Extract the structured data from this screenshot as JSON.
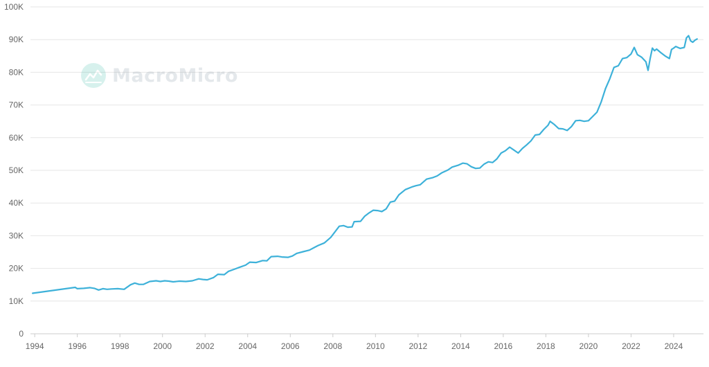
{
  "watermark": {
    "text": "MacroMicro",
    "icon": "macromicro-logo-icon"
  },
  "colors": {
    "line": "#3db1d9",
    "grid": "#e6e6e6",
    "axis": "#cccccc",
    "text": "#666666"
  },
  "chart_data": {
    "type": "line",
    "title": "",
    "xlabel": "",
    "ylabel": "",
    "xlim": [
      1993.8,
      2025.4
    ],
    "ylim": [
      0,
      100000
    ],
    "grid": true,
    "legend": "none",
    "x_ticks": [
      1994,
      1996,
      1998,
      2000,
      2002,
      2004,
      2006,
      2008,
      2010,
      2012,
      2014,
      2016,
      2018,
      2020,
      2022,
      2024
    ],
    "y_ticks": [
      {
        "value": 0,
        "label": "0"
      },
      {
        "value": 10000,
        "label": "10K"
      },
      {
        "value": 20000,
        "label": "20K"
      },
      {
        "value": 30000,
        "label": "30K"
      },
      {
        "value": 40000,
        "label": "40K"
      },
      {
        "value": 50000,
        "label": "50K"
      },
      {
        "value": 60000,
        "label": "60K"
      },
      {
        "value": 70000,
        "label": "70K"
      },
      {
        "value": 80000,
        "label": "80K"
      },
      {
        "value": 90000,
        "label": "90K"
      },
      {
        "value": 100000,
        "label": "100K"
      }
    ],
    "series": [
      {
        "x": [
          1993.9,
          1995.9,
          1996.0,
          1996.3,
          1996.6,
          1996.8,
          1997.0,
          1997.2,
          1997.4,
          1997.6,
          1997.9,
          1998.2,
          1998.5,
          1998.7,
          1998.9,
          1999.1,
          1999.4,
          1999.7,
          1999.9,
          2000.1,
          2000.3,
          2000.5,
          2000.8,
          2001.1,
          2001.4,
          2001.7,
          2001.9,
          2002.1,
          2002.4,
          2002.6,
          2002.9,
          2003.1,
          2003.4,
          2003.6,
          2003.9,
          2004.1,
          2004.4,
          2004.7,
          2004.9,
          2005.1,
          2005.4,
          2005.6,
          2005.9,
          2006.1,
          2006.3,
          2006.6,
          2006.9,
          2007.1,
          2007.3,
          2007.6,
          2007.9,
          2008.1,
          2008.3,
          2008.5,
          2008.7,
          2008.9,
          2009.0,
          2009.3,
          2009.5,
          2009.7,
          2009.9,
          2010.1,
          2010.3,
          2010.5,
          2010.7,
          2010.9,
          2011.1,
          2011.4,
          2011.7,
          2011.9,
          2012.1,
          2012.4,
          2012.7,
          2012.9,
          2013.1,
          2013.4,
          2013.6,
          2013.9,
          2014.1,
          2014.3,
          2014.5,
          2014.7,
          2014.9,
          2015.1,
          2015.3,
          2015.5,
          2015.7,
          2015.9,
          2016.1,
          2016.3,
          2016.5,
          2016.7,
          2016.9,
          2017.1,
          2017.3,
          2017.5,
          2017.7,
          2017.9,
          2018.1,
          2018.2,
          2018.4,
          2018.6,
          2018.8,
          2019.0,
          2019.2,
          2019.4,
          2019.6,
          2019.8,
          2020.0,
          2020.2,
          2020.4,
          2020.6,
          2020.8,
          2021.0,
          2021.2,
          2021.4,
          2021.6,
          2021.8,
          2022.0,
          2022.15,
          2022.3,
          2022.5,
          2022.7,
          2022.8,
          2022.9,
          2023.0,
          2023.1,
          2023.2,
          2023.4,
          2023.6,
          2023.8,
          2023.9,
          2024.0,
          2024.1,
          2024.3,
          2024.5,
          2024.6,
          2024.7,
          2024.8,
          2024.9,
          2025.0,
          2025.1
        ],
        "values": [
          12400,
          14200,
          13800,
          13900,
          14100,
          13900,
          13400,
          13800,
          13600,
          13700,
          13800,
          13600,
          15000,
          15500,
          15100,
          15100,
          16000,
          16200,
          16000,
          16200,
          16100,
          15900,
          16100,
          16000,
          16200,
          16800,
          16600,
          16500,
          17200,
          18200,
          18100,
          19100,
          19800,
          20300,
          21000,
          21900,
          21800,
          22400,
          22300,
          23600,
          23700,
          23500,
          23400,
          23800,
          24600,
          25100,
          25600,
          26300,
          27000,
          27800,
          29500,
          31200,
          32900,
          33100,
          32600,
          32700,
          34300,
          34400,
          36000,
          37000,
          37800,
          37700,
          37400,
          38200,
          40300,
          40600,
          42500,
          44100,
          44900,
          45300,
          45600,
          47300,
          47800,
          48300,
          49200,
          50100,
          51000,
          51600,
          52200,
          52000,
          51100,
          50600,
          50700,
          51900,
          52600,
          52400,
          53500,
          55300,
          56000,
          57100,
          56200,
          55300,
          56700,
          57800,
          59000,
          60800,
          61000,
          62500,
          63800,
          65000,
          64000,
          62800,
          62700,
          62200,
          63400,
          65200,
          65300,
          65000,
          65200,
          66500,
          67800,
          71000,
          75000,
          78000,
          81500,
          82000,
          84200,
          84500,
          85600,
          87600,
          85400,
          84600,
          83200,
          80600,
          84300,
          87400,
          86600,
          87100,
          86000,
          85000,
          84200,
          87000,
          87400,
          87900,
          87300,
          87600,
          90500,
          91200,
          89600,
          89200,
          89800,
          90200
        ]
      }
    ]
  }
}
